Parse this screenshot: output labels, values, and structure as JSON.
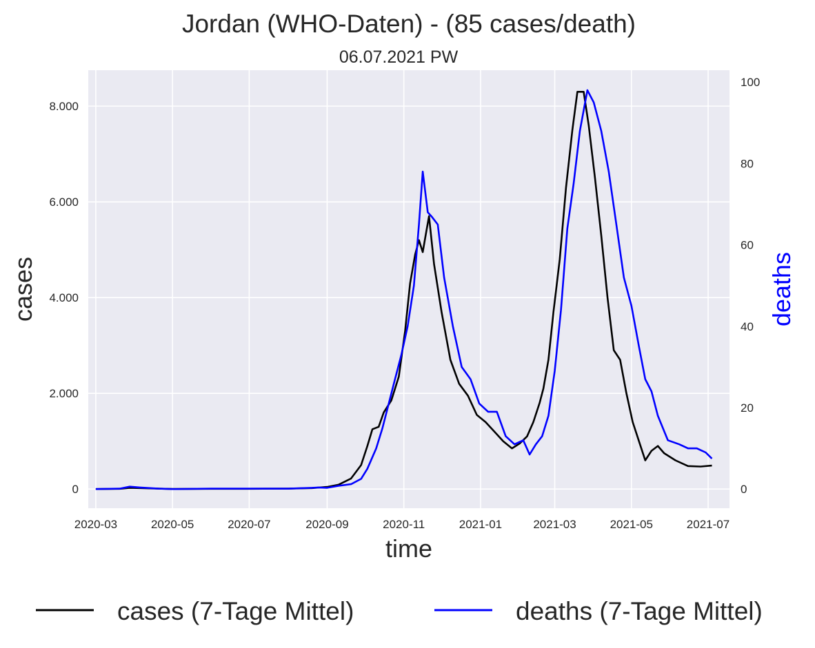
{
  "chart_data": {
    "type": "line",
    "title": "Jordan (WHO-Daten) - (85 cases/death)",
    "subtitle": "06.07.2021 PW",
    "xlabel": "time",
    "ylabel_left": "cases",
    "ylabel_right": "deaths",
    "grid": true,
    "legend_position": "bottom",
    "x_range": [
      "2020-02-24",
      "2021-07-18"
    ],
    "y_left_range": [
      -400,
      8750
    ],
    "y_right_range": [
      -4.7,
      102.9
    ],
    "x_ticks": [
      {
        "date": "2020-03-01",
        "label": "2020-03"
      },
      {
        "date": "2020-05-01",
        "label": "2020-05"
      },
      {
        "date": "2020-07-01",
        "label": "2020-07"
      },
      {
        "date": "2020-09-01",
        "label": "2020-09"
      },
      {
        "date": "2020-11-01",
        "label": "2020-11"
      },
      {
        "date": "2021-01-01",
        "label": "2021-01"
      },
      {
        "date": "2021-03-01",
        "label": "2021-03"
      },
      {
        "date": "2021-05-01",
        "label": "2021-05"
      },
      {
        "date": "2021-07-01",
        "label": "2021-07"
      }
    ],
    "y_left_ticks": [
      {
        "value": 0,
        "label": "0"
      },
      {
        "value": 2000,
        "label": "2.000"
      },
      {
        "value": 4000,
        "label": "4.000"
      },
      {
        "value": 6000,
        "label": "6.000"
      },
      {
        "value": 8000,
        "label": "8.000"
      }
    ],
    "y_right_ticks": [
      {
        "value": 0,
        "label": "0"
      },
      {
        "value": 20,
        "label": "20"
      },
      {
        "value": 40,
        "label": "40"
      },
      {
        "value": 60,
        "label": "60"
      },
      {
        "value": 80,
        "label": "80"
      },
      {
        "value": 100,
        "label": "100"
      }
    ],
    "series": [
      {
        "name": "cases (7-Tage Mittel)",
        "axis": "left",
        "color": "#000000",
        "points": [
          [
            "2020-03-01",
            0
          ],
          [
            "2020-03-20",
            5
          ],
          [
            "2020-03-28",
            25
          ],
          [
            "2020-04-05",
            20
          ],
          [
            "2020-04-20",
            8
          ],
          [
            "2020-05-01",
            2
          ],
          [
            "2020-06-01",
            5
          ],
          [
            "2020-07-01",
            5
          ],
          [
            "2020-08-01",
            8
          ],
          [
            "2020-08-20",
            20
          ],
          [
            "2020-09-01",
            45
          ],
          [
            "2020-09-10",
            90
          ],
          [
            "2020-09-20",
            220
          ],
          [
            "2020-09-28",
            500
          ],
          [
            "2020-10-03",
            900
          ],
          [
            "2020-10-07",
            1250
          ],
          [
            "2020-10-12",
            1300
          ],
          [
            "2020-10-16",
            1600
          ],
          [
            "2020-10-22",
            1850
          ],
          [
            "2020-10-28",
            2350
          ],
          [
            "2020-11-02",
            3300
          ],
          [
            "2020-11-06",
            4300
          ],
          [
            "2020-11-10",
            4900
          ],
          [
            "2020-11-13",
            5200
          ],
          [
            "2020-11-16",
            4950
          ],
          [
            "2020-11-19",
            5400
          ],
          [
            "2020-11-21",
            5700
          ],
          [
            "2020-11-25",
            4700
          ],
          [
            "2020-12-01",
            3700
          ],
          [
            "2020-12-08",
            2700
          ],
          [
            "2020-12-15",
            2200
          ],
          [
            "2020-12-22",
            1950
          ],
          [
            "2020-12-29",
            1550
          ],
          [
            "2021-01-05",
            1400
          ],
          [
            "2021-01-12",
            1200
          ],
          [
            "2021-01-19",
            1000
          ],
          [
            "2021-01-26",
            850
          ],
          [
            "2021-02-01",
            950
          ],
          [
            "2021-02-07",
            1100
          ],
          [
            "2021-02-12",
            1400
          ],
          [
            "2021-02-17",
            1800
          ],
          [
            "2021-02-20",
            2100
          ],
          [
            "2021-02-24",
            2700
          ],
          [
            "2021-02-28",
            3700
          ],
          [
            "2021-03-05",
            4800
          ],
          [
            "2021-03-10",
            6300
          ],
          [
            "2021-03-15",
            7500
          ],
          [
            "2021-03-19",
            8300
          ],
          [
            "2021-03-24",
            8300
          ],
          [
            "2021-03-28",
            7600
          ],
          [
            "2021-04-02",
            6500
          ],
          [
            "2021-04-07",
            5300
          ],
          [
            "2021-04-12",
            4000
          ],
          [
            "2021-04-17",
            2900
          ],
          [
            "2021-04-22",
            2700
          ],
          [
            "2021-04-27",
            2000
          ],
          [
            "2021-05-02",
            1400
          ],
          [
            "2021-05-07",
            1000
          ],
          [
            "2021-05-12",
            600
          ],
          [
            "2021-05-17",
            800
          ],
          [
            "2021-05-22",
            900
          ],
          [
            "2021-05-27",
            750
          ],
          [
            "2021-06-05",
            600
          ],
          [
            "2021-06-15",
            480
          ],
          [
            "2021-06-25",
            470
          ],
          [
            "2021-07-04",
            490
          ]
        ]
      },
      {
        "name": "deaths (7-Tage Mittel)",
        "axis": "right",
        "color": "#0000ff",
        "points": [
          [
            "2020-03-01",
            0
          ],
          [
            "2020-03-20",
            0.1
          ],
          [
            "2020-03-28",
            0.6
          ],
          [
            "2020-04-05",
            0.4
          ],
          [
            "2020-04-20",
            0.1
          ],
          [
            "2020-05-01",
            0
          ],
          [
            "2020-06-01",
            0.1
          ],
          [
            "2020-07-01",
            0.1
          ],
          [
            "2020-08-01",
            0.1
          ],
          [
            "2020-08-20",
            0.3
          ],
          [
            "2020-08-25",
            0.4
          ],
          [
            "2020-09-01",
            0.3
          ],
          [
            "2020-09-10",
            0.8
          ],
          [
            "2020-09-20",
            1.2
          ],
          [
            "2020-09-28",
            2.5
          ],
          [
            "2020-10-03",
            5
          ],
          [
            "2020-10-10",
            10
          ],
          [
            "2020-10-15",
            15
          ],
          [
            "2020-10-20",
            21
          ],
          [
            "2020-10-25",
            27
          ],
          [
            "2020-10-30",
            33
          ],
          [
            "2020-11-04",
            40
          ],
          [
            "2020-11-09",
            50
          ],
          [
            "2020-11-13",
            65
          ],
          [
            "2020-11-16",
            78
          ],
          [
            "2020-11-20",
            68
          ],
          [
            "2020-11-23",
            67
          ],
          [
            "2020-11-28",
            65
          ],
          [
            "2020-12-03",
            52
          ],
          [
            "2020-12-10",
            40
          ],
          [
            "2020-12-17",
            30
          ],
          [
            "2020-12-24",
            27
          ],
          [
            "2020-12-31",
            21
          ],
          [
            "2021-01-07",
            19
          ],
          [
            "2021-01-14",
            19
          ],
          [
            "2021-01-21",
            13
          ],
          [
            "2021-01-28",
            11
          ],
          [
            "2021-02-04",
            12
          ],
          [
            "2021-02-09",
            8.5
          ],
          [
            "2021-02-14",
            11
          ],
          [
            "2021-02-19",
            13
          ],
          [
            "2021-02-24",
            18
          ],
          [
            "2021-03-01",
            29
          ],
          [
            "2021-03-06",
            44
          ],
          [
            "2021-03-11",
            64
          ],
          [
            "2021-03-16",
            75
          ],
          [
            "2021-03-21",
            88
          ],
          [
            "2021-03-27",
            98
          ],
          [
            "2021-04-01",
            95
          ],
          [
            "2021-04-07",
            88
          ],
          [
            "2021-04-13",
            78
          ],
          [
            "2021-04-19",
            65
          ],
          [
            "2021-04-25",
            52
          ],
          [
            "2021-05-01",
            45
          ],
          [
            "2021-05-07",
            35
          ],
          [
            "2021-05-12",
            27
          ],
          [
            "2021-05-17",
            24
          ],
          [
            "2021-05-22",
            18
          ],
          [
            "2021-05-30",
            12
          ],
          [
            "2021-06-08",
            11
          ],
          [
            "2021-06-15",
            10
          ],
          [
            "2021-06-22",
            10
          ],
          [
            "2021-06-29",
            9
          ],
          [
            "2021-07-04",
            7.5
          ]
        ]
      }
    ]
  }
}
